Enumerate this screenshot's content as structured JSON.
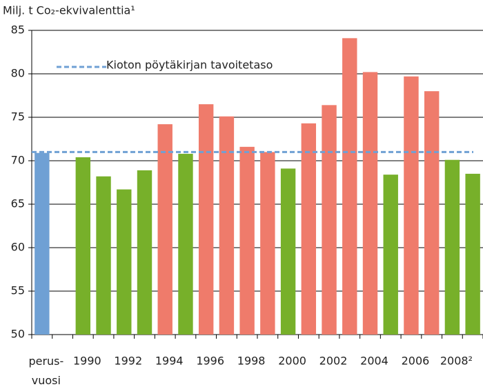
{
  "chart_data": {
    "type": "bar",
    "y_label": "Milj. t Co₂-ekvivalenttia¹",
    "categories": [
      "perus-\nvuosi",
      null,
      "1990",
      null,
      "1992",
      null,
      "1994",
      null,
      "1996",
      null,
      "1998",
      null,
      "2000",
      null,
      "2002",
      null,
      "2004",
      null,
      "2006",
      null,
      "2008²",
      null
    ],
    "values": [
      70.9,
      null,
      70.4,
      68.2,
      66.7,
      68.9,
      74.2,
      70.8,
      76.5,
      75.1,
      71.6,
      71.0,
      69.1,
      74.3,
      76.4,
      84.1,
      80.2,
      68.4,
      79.7,
      78.0,
      70.1,
      68.5
    ],
    "colors": [
      "#6fa0d4",
      null,
      "#77b02a",
      "#77b02a",
      "#77b02a",
      "#77b02a",
      "#ef7b6b",
      "#77b02a",
      "#ef7b6b",
      "#ef7b6b",
      "#ef7b6b",
      "#ef7b6b",
      "#77b02a",
      "#ef7b6b",
      "#ef7b6b",
      "#ef7b6b",
      "#ef7b6b",
      "#77b02a",
      "#ef7b6b",
      "#ef7b6b",
      "#77b02a",
      "#77b02a"
    ],
    "target": {
      "value": 71,
      "label": "Kioton pöytäkirjan tavoitetaso",
      "color": "#6fa0d4"
    },
    "ylim": [
      50,
      85
    ],
    "yticks": [
      50,
      55,
      60,
      65,
      70,
      75,
      80,
      85
    ],
    "grid": true
  }
}
